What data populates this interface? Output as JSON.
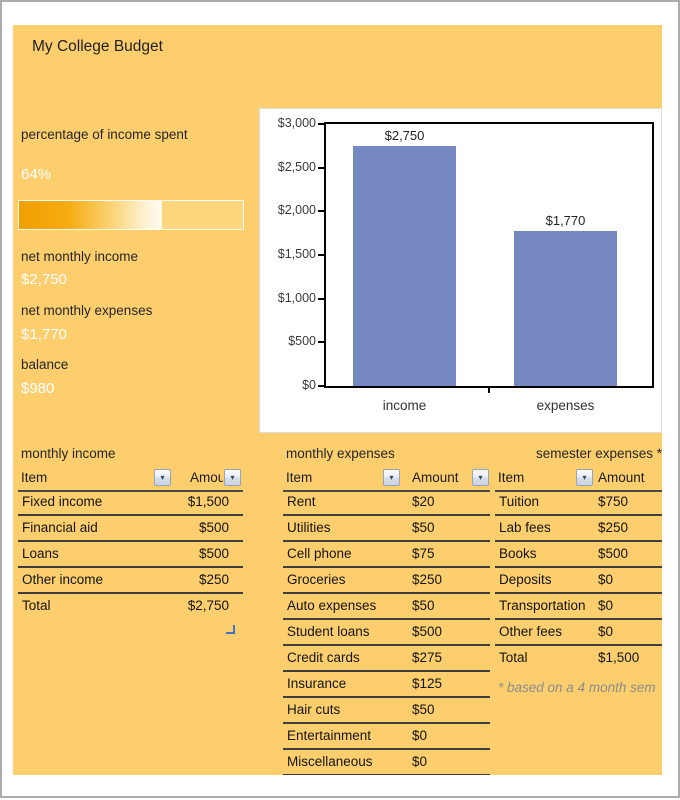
{
  "title": "My College Budget",
  "summary": {
    "percent_label": "percentage of income spent",
    "percent_value": "64%",
    "percent_fill": 64,
    "items": [
      {
        "label": "net monthly income",
        "value": "$2,750"
      },
      {
        "label": "net monthly expenses",
        "value": "$1,770"
      },
      {
        "label": "balance",
        "value": "$980"
      }
    ]
  },
  "chart_data": {
    "type": "bar",
    "title": "",
    "xlabel": "",
    "ylabel": "",
    "categories": [
      "income",
      "expenses"
    ],
    "values": [
      2750,
      1770
    ],
    "data_labels": [
      "$2,750",
      "$1,770"
    ],
    "y_ticks": [
      "$3,000",
      "$2,500",
      "$2,000",
      "$1,500",
      "$1,000",
      "$500",
      "$0"
    ],
    "ylim": [
      0,
      3000
    ],
    "grid": false,
    "legend": false,
    "bar_color": "#7588C1"
  },
  "tables": {
    "income": {
      "caption": "monthly income",
      "columns": [
        "Item",
        "Amou"
      ],
      "rows": [
        [
          "Fixed income",
          "$1,500"
        ],
        [
          "Financial aid",
          "$500"
        ],
        [
          "Loans",
          "$500"
        ],
        [
          "Other income",
          "$250"
        ]
      ],
      "total": [
        "Total",
        "$2,750"
      ]
    },
    "expenses": {
      "caption": "monthly expenses",
      "columns": [
        "Item",
        "Amount"
      ],
      "rows": [
        [
          "Rent",
          "$20"
        ],
        [
          "Utilities",
          "$50"
        ],
        [
          "Cell phone",
          "$75"
        ],
        [
          "Groceries",
          "$250"
        ],
        [
          "Auto expenses",
          "$50"
        ],
        [
          "Student loans",
          "$500"
        ],
        [
          "Credit cards",
          "$275"
        ],
        [
          "Insurance",
          "$125"
        ],
        [
          "Hair cuts",
          "$50"
        ],
        [
          "Entertainment",
          "$0"
        ],
        [
          "Miscellaneous",
          "$0"
        ]
      ]
    },
    "semester": {
      "caption": "semester expenses *",
      "columns": [
        "Item",
        "Amount"
      ],
      "rows": [
        [
          "Tuition",
          "$750"
        ],
        [
          "Lab fees",
          "$250"
        ],
        [
          "Books",
          "$500"
        ],
        [
          "Deposits",
          "$0"
        ],
        [
          "Transportation",
          "$0"
        ],
        [
          "Other fees",
          "$0"
        ]
      ],
      "total": [
        "Total",
        "$1,500"
      ],
      "note": "* based on a 4 month sem"
    }
  },
  "colors": {
    "panel_background": "#FCCE6E",
    "progress_fill": "#F1A000",
    "bar_fill": "#7588C1",
    "frame_border": "#ABABAB"
  }
}
